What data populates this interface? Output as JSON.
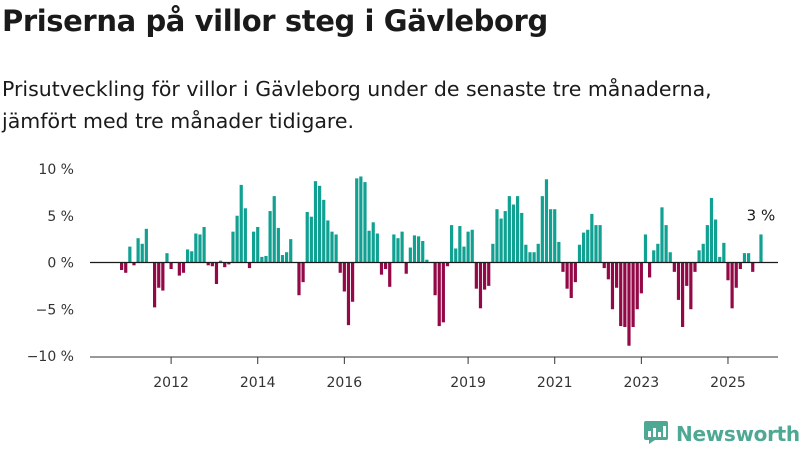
{
  "title": "Priserna på villor steg i Gävleborg",
  "subtitle": "Prisutveckling för villor i Gävleborg under de senaste tre månaderna, jämfört med tre månader tidigare.",
  "brand": {
    "name": "Newsworthy",
    "icon": "bar-chart-logo-icon"
  },
  "colors": {
    "positive": "#11a192",
    "negative": "#930846",
    "axis": "#333333",
    "grid": "#d9d9d9"
  },
  "chart_data": {
    "type": "bar",
    "title": "Priserna på villor steg i Gävleborg",
    "ylim": [
      -10,
      10
    ],
    "yticks": [
      10,
      5,
      0,
      -5,
      -10
    ],
    "ytick_labels": [
      "10 %",
      "5 %",
      "0 %",
      "−5 %",
      "−10 %"
    ],
    "xtick_labels": [
      "2012",
      "2014",
      "2016",
      "2019",
      "2021",
      "2023",
      "2025"
    ],
    "xtick_index": [
      12,
      33,
      54,
      84,
      105,
      126,
      147
    ],
    "annotation": "3 %",
    "grid": false,
    "values": [
      -0.8,
      -1.1,
      1.7,
      -0.3,
      2.6,
      2.0,
      3.6,
      0.0,
      -4.8,
      -2.7,
      -3.0,
      1.0,
      -0.7,
      0.0,
      -1.4,
      -1.1,
      1.4,
      1.2,
      3.1,
      3.0,
      3.8,
      -0.3,
      -0.4,
      -2.3,
      0.2,
      -0.5,
      -0.2,
      3.3,
      5.0,
      8.3,
      5.8,
      -0.6,
      3.3,
      3.8,
      0.6,
      0.7,
      5.5,
      7.1,
      3.7,
      0.8,
      1.1,
      2.5,
      0.0,
      -3.5,
      -2.1,
      5.4,
      4.9,
      8.7,
      8.2,
      6.7,
      4.5,
      3.3,
      3.0,
      -1.1,
      -3.1,
      -6.7,
      -4.2,
      9.0,
      9.2,
      8.6,
      3.4,
      4.3,
      3.1,
      -1.3,
      -0.7,
      -2.6,
      3.0,
      2.6,
      3.3,
      -1.2,
      1.6,
      2.9,
      2.8,
      2.3,
      0.3,
      0.0,
      -3.5,
      -6.8,
      -6.4,
      -0.4,
      4.0,
      1.5,
      3.9,
      1.7,
      3.3,
      3.5,
      -2.8,
      -4.9,
      -2.9,
      -2.5,
      2.0,
      5.7,
      4.7,
      5.5,
      7.1,
      6.2,
      7.1,
      5.3,
      1.9,
      1.1,
      1.1,
      2.0,
      7.1,
      8.9,
      5.7,
      5.7,
      2.2,
      -1.0,
      -2.8,
      -3.8,
      -2.1,
      1.9,
      3.2,
      3.5,
      5.2,
      4.0,
      4.0,
      -0.6,
      -1.8,
      -5.0,
      -2.7,
      -6.8,
      -6.9,
      -8.9,
      -6.9,
      -5.0,
      -3.3,
      3.0,
      -1.6,
      1.3,
      2.0,
      5.9,
      4.0,
      1.1,
      -1.0,
      -4.0,
      -6.9,
      -2.5,
      -5.0,
      -1.0,
      1.3,
      2.0,
      4.0,
      6.9,
      4.6,
      0.6,
      2.1,
      -1.9,
      -4.9,
      -2.7,
      -0.7,
      1.0,
      1.0,
      -1.0,
      0.0,
      3.0
    ]
  }
}
